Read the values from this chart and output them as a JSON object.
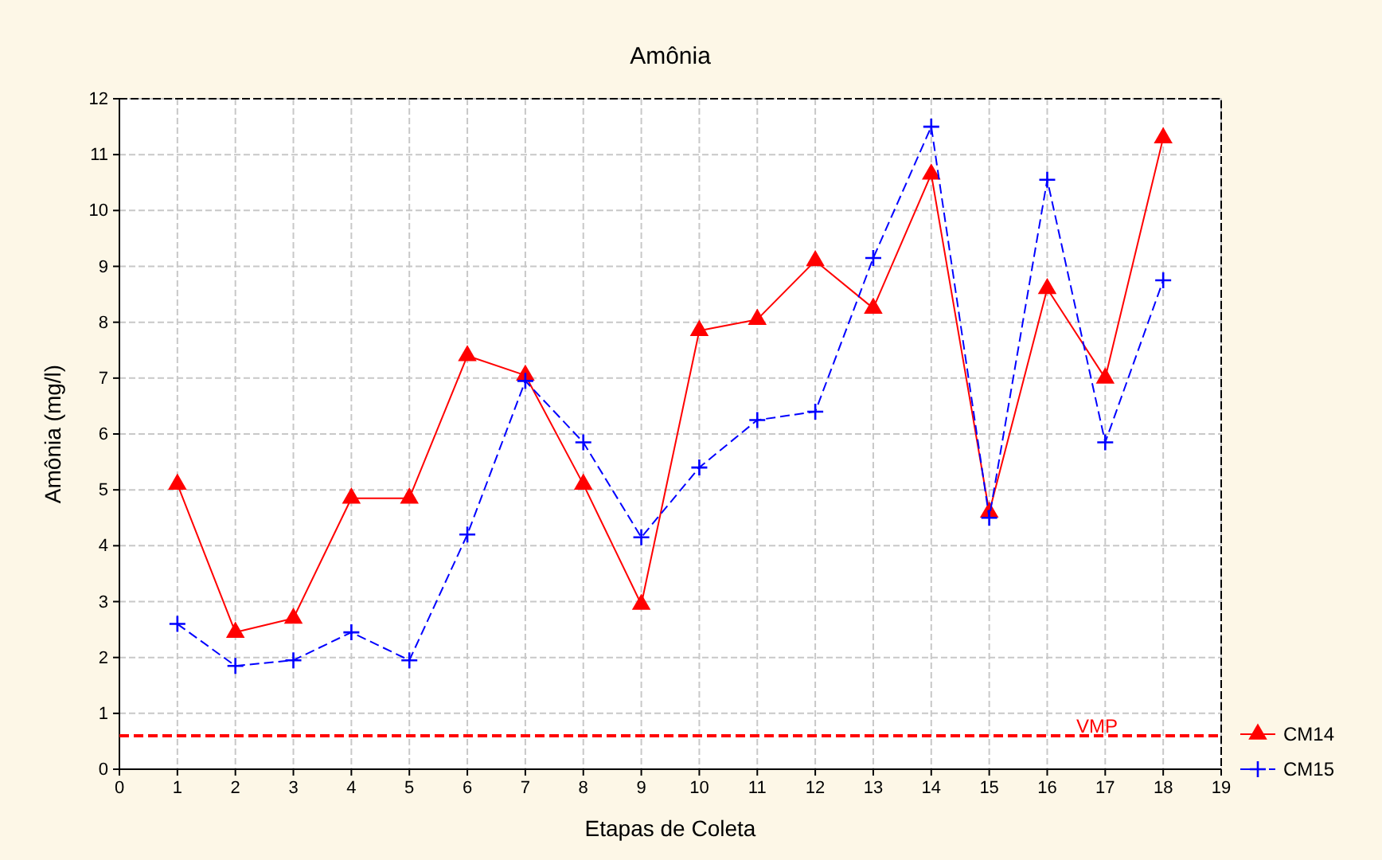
{
  "chart_data": {
    "type": "line",
    "title": "Amônia",
    "xlabel": "Etapas de Coleta",
    "ylabel": "Amônia (mg/l)",
    "x": [
      1,
      2,
      3,
      4,
      5,
      6,
      7,
      8,
      9,
      10,
      11,
      12,
      13,
      14,
      15,
      16,
      17,
      18
    ],
    "xlim": [
      0,
      19
    ],
    "xticks": [
      0,
      1,
      2,
      3,
      4,
      5,
      6,
      7,
      8,
      9,
      10,
      11,
      12,
      13,
      14,
      15,
      16,
      17,
      18,
      19
    ],
    "ylim": [
      0,
      12
    ],
    "yticks": [
      0,
      1,
      2,
      3,
      4,
      5,
      6,
      7,
      8,
      9,
      10,
      11,
      12
    ],
    "grid": true,
    "legend": "bottom right",
    "series": [
      {
        "name": "CM14",
        "color": "#ff0000",
        "marker": "triangle",
        "line_style": "solid",
        "values": [
          5.1,
          2.45,
          2.7,
          4.85,
          4.85,
          7.4,
          7.05,
          5.1,
          2.95,
          7.85,
          8.05,
          9.1,
          8.25,
          10.65,
          4.6,
          8.6,
          7.0,
          11.3
        ]
      },
      {
        "name": "CM15",
        "color": "#0000ff",
        "marker": "cross",
        "line_style": "dashed",
        "values": [
          2.6,
          1.85,
          1.95,
          2.45,
          1.95,
          4.2,
          6.95,
          5.85,
          4.15,
          5.4,
          6.25,
          6.4,
          9.15,
          11.5,
          4.5,
          10.55,
          5.85,
          8.75
        ]
      }
    ],
    "ref_lines": [
      {
        "axis": "y",
        "value": 0.6,
        "label": "VMP",
        "color": "#ff0000",
        "line_style": "dashed"
      }
    ]
  }
}
